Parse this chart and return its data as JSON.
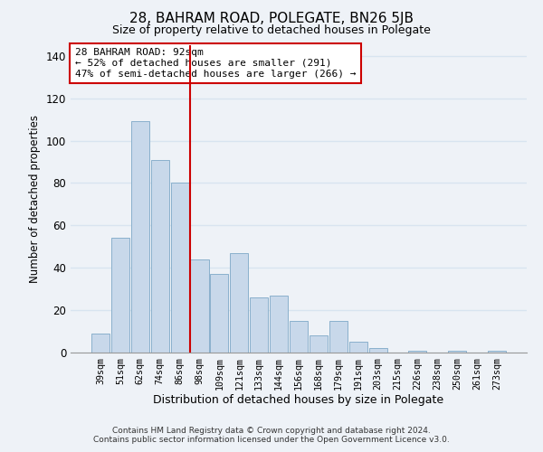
{
  "title": "28, BAHRAM ROAD, POLEGATE, BN26 5JB",
  "subtitle": "Size of property relative to detached houses in Polegate",
  "xlabel": "Distribution of detached houses by size in Polegate",
  "ylabel": "Number of detached properties",
  "bar_labels": [
    "39sqm",
    "51sqm",
    "62sqm",
    "74sqm",
    "86sqm",
    "98sqm",
    "109sqm",
    "121sqm",
    "133sqm",
    "144sqm",
    "156sqm",
    "168sqm",
    "179sqm",
    "191sqm",
    "203sqm",
    "215sqm",
    "226sqm",
    "238sqm",
    "250sqm",
    "261sqm",
    "273sqm"
  ],
  "bar_values": [
    9,
    54,
    109,
    91,
    80,
    44,
    37,
    47,
    26,
    27,
    15,
    8,
    15,
    5,
    2,
    0,
    1,
    0,
    1,
    0,
    1
  ],
  "bar_color": "#c8d8ea",
  "bar_edge_color": "#8ab0cc",
  "vline_x_index": 5,
  "vline_color": "#cc0000",
  "annotation_text": "28 BAHRAM ROAD: 92sqm\n← 52% of detached houses are smaller (291)\n47% of semi-detached houses are larger (266) →",
  "annotation_box_color": "#ffffff",
  "annotation_box_edge": "#cc0000",
  "ylim": [
    0,
    145
  ],
  "yticks": [
    0,
    20,
    40,
    60,
    80,
    100,
    120,
    140
  ],
  "footer_line1": "Contains HM Land Registry data © Crown copyright and database right 2024.",
  "footer_line2": "Contains public sector information licensed under the Open Government Licence v3.0.",
  "background_color": "#eef2f7",
  "grid_color": "#d8e4f0"
}
